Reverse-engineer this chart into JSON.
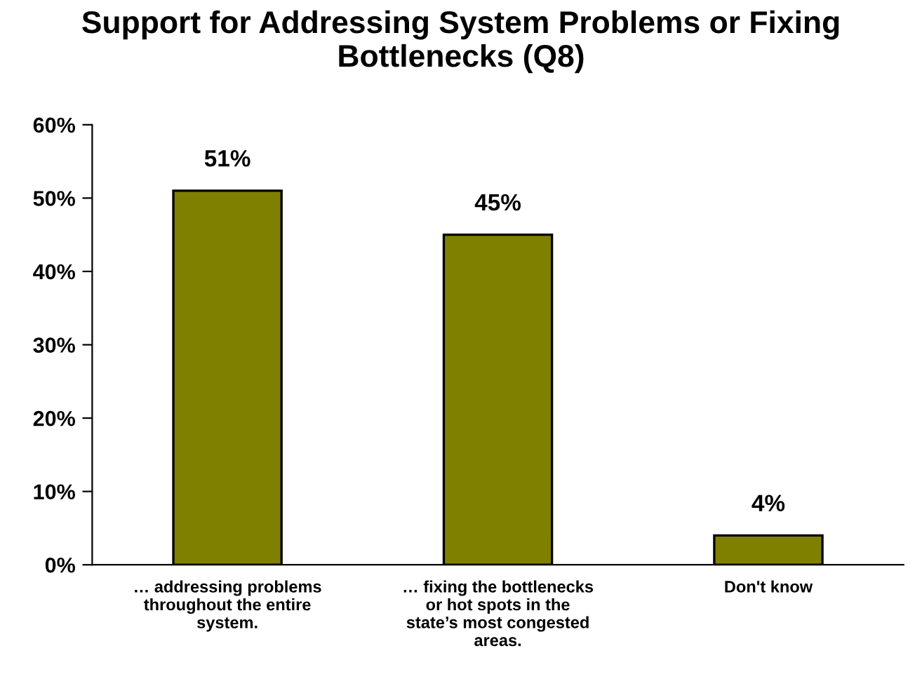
{
  "chart_data": {
    "type": "bar",
    "title": "Support for Addressing System Problems or Fixing Bottlenecks (Q8)",
    "categories": [
      "… addressing problems\nthroughout the entire\nsystem.",
      "… fixing the bottlenecks\nor hot spots in the\nstate’s most congested\nareas.",
      "Don't know"
    ],
    "values": [
      51,
      45,
      4
    ],
    "value_labels": [
      "51%",
      "45%",
      "4%"
    ],
    "color": "#808000",
    "ylim": [
      0,
      60
    ],
    "yticks": [
      {
        "value": 0,
        "label": "0%"
      },
      {
        "value": 10,
        "label": "10%"
      },
      {
        "value": 20,
        "label": "20%"
      },
      {
        "value": 30,
        "label": "30%"
      },
      {
        "value": 40,
        "label": "40%"
      },
      {
        "value": 50,
        "label": "50%"
      },
      {
        "value": 60,
        "label": "60%"
      }
    ],
    "grid": false,
    "legend": false
  }
}
